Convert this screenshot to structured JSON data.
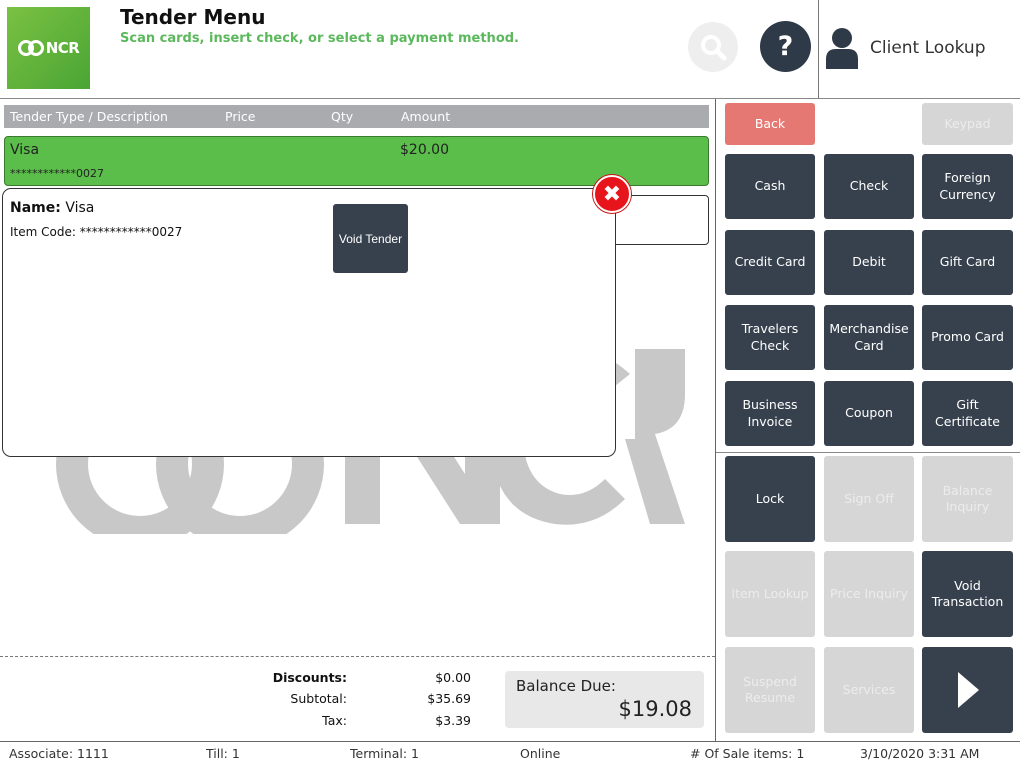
{
  "header": {
    "logo_text": "NCR",
    "title": "Tender Menu",
    "subtitle": "Scan cards, insert check, or select a payment method.",
    "help_label": "?",
    "client_lookup_label": "Client Lookup"
  },
  "table": {
    "columns": [
      "Tender Type / Description",
      "Price",
      "Qty",
      "Amount"
    ],
    "rows": [
      {
        "description": "Visa",
        "code": "************0027",
        "amount": "$20.00"
      }
    ]
  },
  "popup": {
    "name_label": "Name:",
    "name_value": "Visa",
    "code_label": "Item Code:",
    "code_value": "************0027",
    "void_tender_label": "Void Tender",
    "close_label": "✖"
  },
  "totals": {
    "discounts_label": "Discounts:",
    "discounts_value": "$0.00",
    "subtotal_label": "Subtotal:",
    "subtotal_value": "$35.69",
    "tax_label": "Tax:",
    "tax_value": "$3.39",
    "balance_label": "Balance Due:",
    "balance_value": "$19.08"
  },
  "buttons": {
    "back": "Back",
    "keypad": "Keypad",
    "cash": "Cash",
    "check": "Check",
    "foreign_currency": "Foreign\nCurrency",
    "credit_card": "Credit Card",
    "debit": "Debit",
    "gift_card": "Gift Card",
    "travelers_check": "Travelers\nCheck",
    "merchandise_card": "Merchandise\nCard",
    "promo_card": "Promo Card",
    "business_invoice": "Business\nInvoice",
    "coupon": "Coupon",
    "gift_certificate": "Gift Certificate",
    "lock": "Lock",
    "sign_off": "Sign Off",
    "balance_inquiry": "Balance\nInquiry",
    "item_lookup": "Item Lookup",
    "price_inquiry": "Price Inquiry",
    "void_transaction": "Void\nTransaction",
    "suspend_resume": "Suspend\nResume",
    "services": "Services"
  },
  "footer": {
    "associate": "Associate: 1111",
    "till": "Till: 1",
    "terminal": "Terminal: 1",
    "status": "Online",
    "sale_items": "# Of Sale items: 1",
    "datetime": "3/10/2020 3:31 AM"
  },
  "colors": {
    "accent_green": "#5bbd4a",
    "button_dark": "#37414e",
    "button_disabled": "#d6d6d6",
    "back_red": "#e57873",
    "close_red": "#e8141c"
  }
}
